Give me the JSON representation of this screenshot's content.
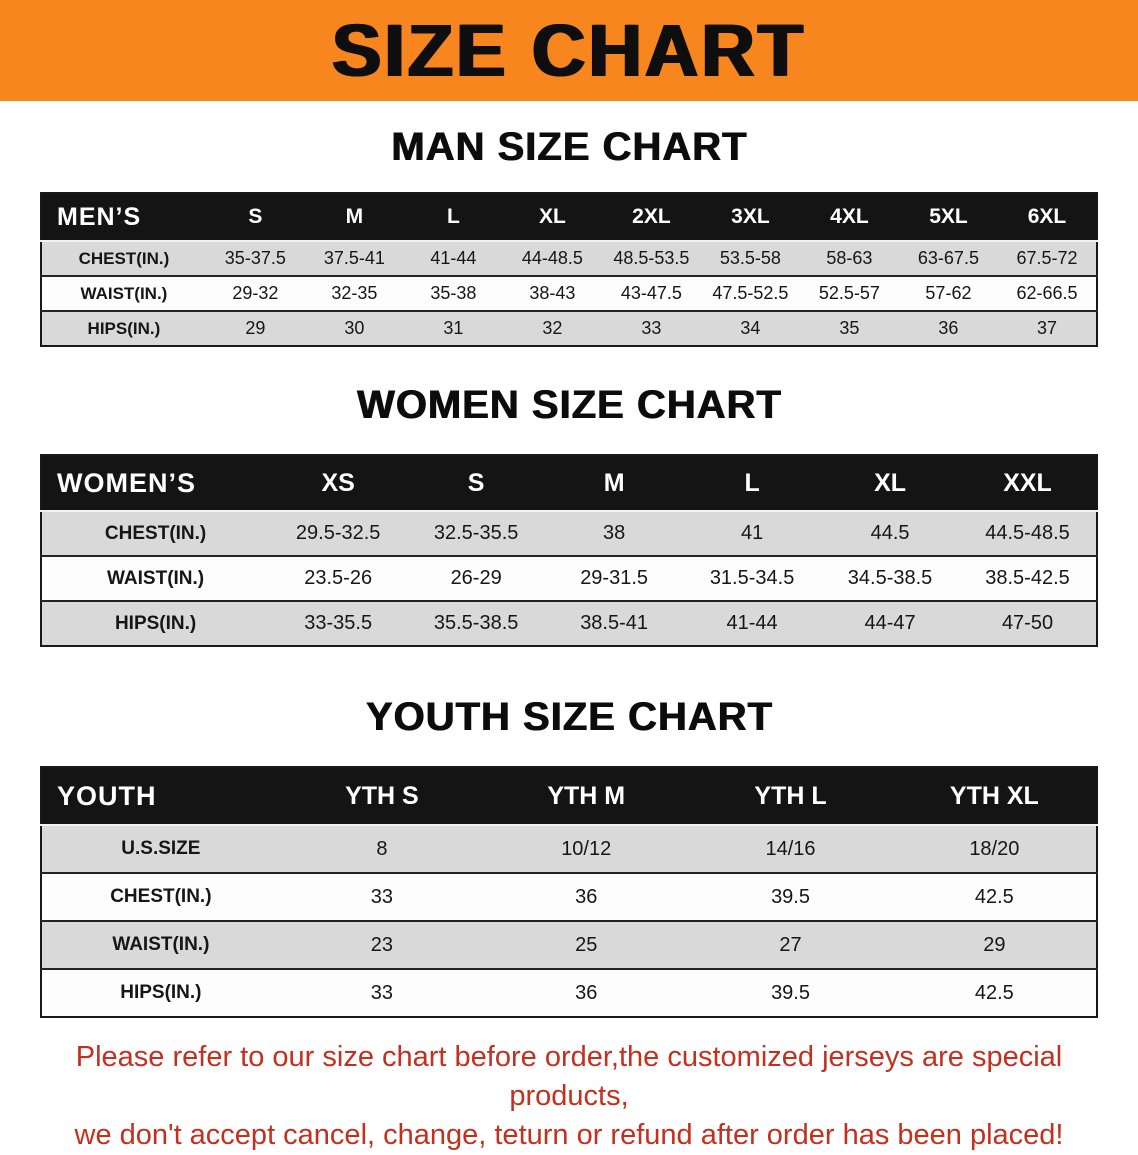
{
  "banner": {
    "title": "SIZE CHART"
  },
  "colors": {
    "banner_orange": "#F6861D",
    "header_black": "#141414",
    "row_gray": "#D9D9D9",
    "footer_red": "#C2301F"
  },
  "sections": {
    "men": {
      "heading": "MAN SIZE CHART",
      "table": {
        "header": [
          "MEN’S",
          "S",
          "M",
          "L",
          "XL",
          "2XL",
          "3XL",
          "4XL",
          "5XL",
          "6XL"
        ],
        "rows": [
          [
            "CHEST(IN.)",
            "35-37.5",
            "37.5-41",
            "41-44",
            "44-48.5",
            "48.5-53.5",
            "53.5-58",
            "58-63",
            "63-67.5",
            "67.5-72"
          ],
          [
            "WAIST(IN.)",
            "29-32",
            "32-35",
            "35-38",
            "38-43",
            "43-47.5",
            "47.5-52.5",
            "52.5-57",
            "57-62",
            "62-66.5"
          ],
          [
            "HIPS(IN.)",
            "29",
            "30",
            "31",
            "32",
            "33",
            "34",
            "35",
            "36",
            "37"
          ]
        ]
      }
    },
    "women": {
      "heading": "WOMEN SIZE CHART",
      "table": {
        "header": [
          "WOMEN’S",
          "XS",
          "S",
          "M",
          "L",
          "XL",
          "XXL"
        ],
        "rows": [
          [
            "CHEST(IN.)",
            "29.5-32.5",
            "32.5-35.5",
            "38",
            "41",
            "44.5",
            "44.5-48.5"
          ],
          [
            "WAIST(IN.)",
            "23.5-26",
            "26-29",
            "29-31.5",
            "31.5-34.5",
            "34.5-38.5",
            "38.5-42.5"
          ],
          [
            "HIPS(IN.)",
            "33-35.5",
            "35.5-38.5",
            "38.5-41",
            "41-44",
            "44-47",
            "47-50"
          ]
        ]
      }
    },
    "youth": {
      "heading": "YOUTH SIZE CHART",
      "table": {
        "header": [
          "YOUTH",
          "YTH S",
          "YTH M",
          "YTH L",
          "YTH XL"
        ],
        "rows": [
          [
            "U.S.SIZE",
            "8",
            "10/12",
            "14/16",
            "18/20"
          ],
          [
            "CHEST(IN.)",
            "33",
            "36",
            "39.5",
            "42.5"
          ],
          [
            "WAIST(IN.)",
            "23",
            "25",
            "27",
            "29"
          ],
          [
            "HIPS(IN.)",
            "33",
            "36",
            "39.5",
            "42.5"
          ]
        ]
      }
    }
  },
  "footer": {
    "line1": "Please refer to our size chart before order,the customized jerseys are special products,",
    "line2": "we don't accept cancel, change, teturn or refund after order has been placed!"
  }
}
